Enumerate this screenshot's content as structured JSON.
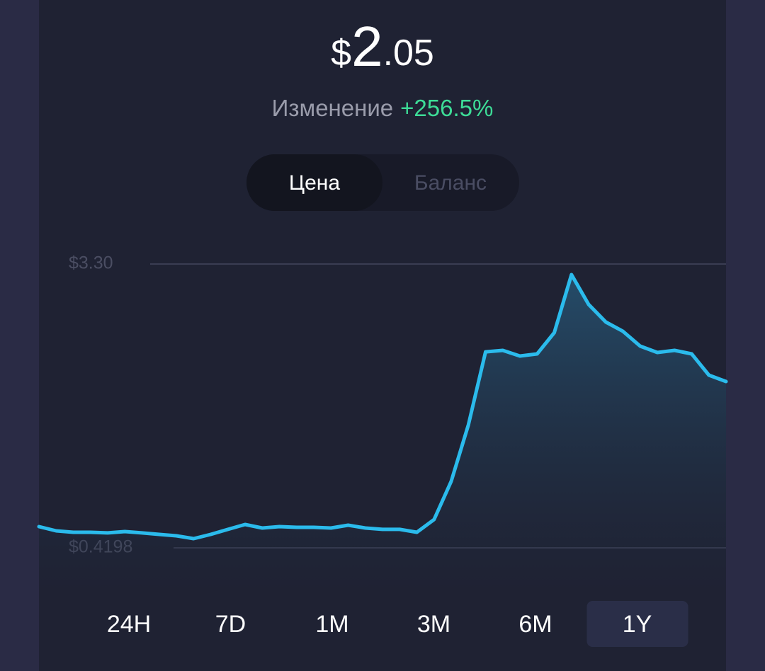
{
  "price": {
    "currency": "$",
    "integer": "2",
    "decimal": ".05"
  },
  "change": {
    "label": "Изменение",
    "value": "+256.5%"
  },
  "tabs": [
    "Цена",
    "Баланс"
  ],
  "selected_tab": "Цена",
  "chart_data": {
    "type": "line",
    "color": "#2bbbec",
    "values": [
      0.635,
      0.592,
      0.578,
      0.578,
      0.571,
      0.585,
      0.571,
      0.556,
      0.542,
      0.513,
      0.556,
      0.607,
      0.657,
      0.621,
      0.635,
      0.628,
      0.628,
      0.621,
      0.65,
      0.621,
      0.607,
      0.607,
      0.578,
      0.707,
      1.095,
      1.669,
      2.409,
      2.424,
      2.366,
      2.388,
      2.603,
      3.192,
      2.89,
      2.711,
      2.617,
      2.467,
      2.402,
      2.424,
      2.388,
      2.172,
      2.108
    ],
    "ylim": [
      0.4198,
      3.3
    ],
    "yticks": [
      {
        "value": 3.3,
        "label": "$3.30"
      },
      {
        "value": 0.4198,
        "label": "$0.4198"
      }
    ],
    "grid": true
  },
  "periods": [
    "24H",
    "7D",
    "1M",
    "3M",
    "6M",
    "1Y"
  ],
  "selected_period": "1Y"
}
